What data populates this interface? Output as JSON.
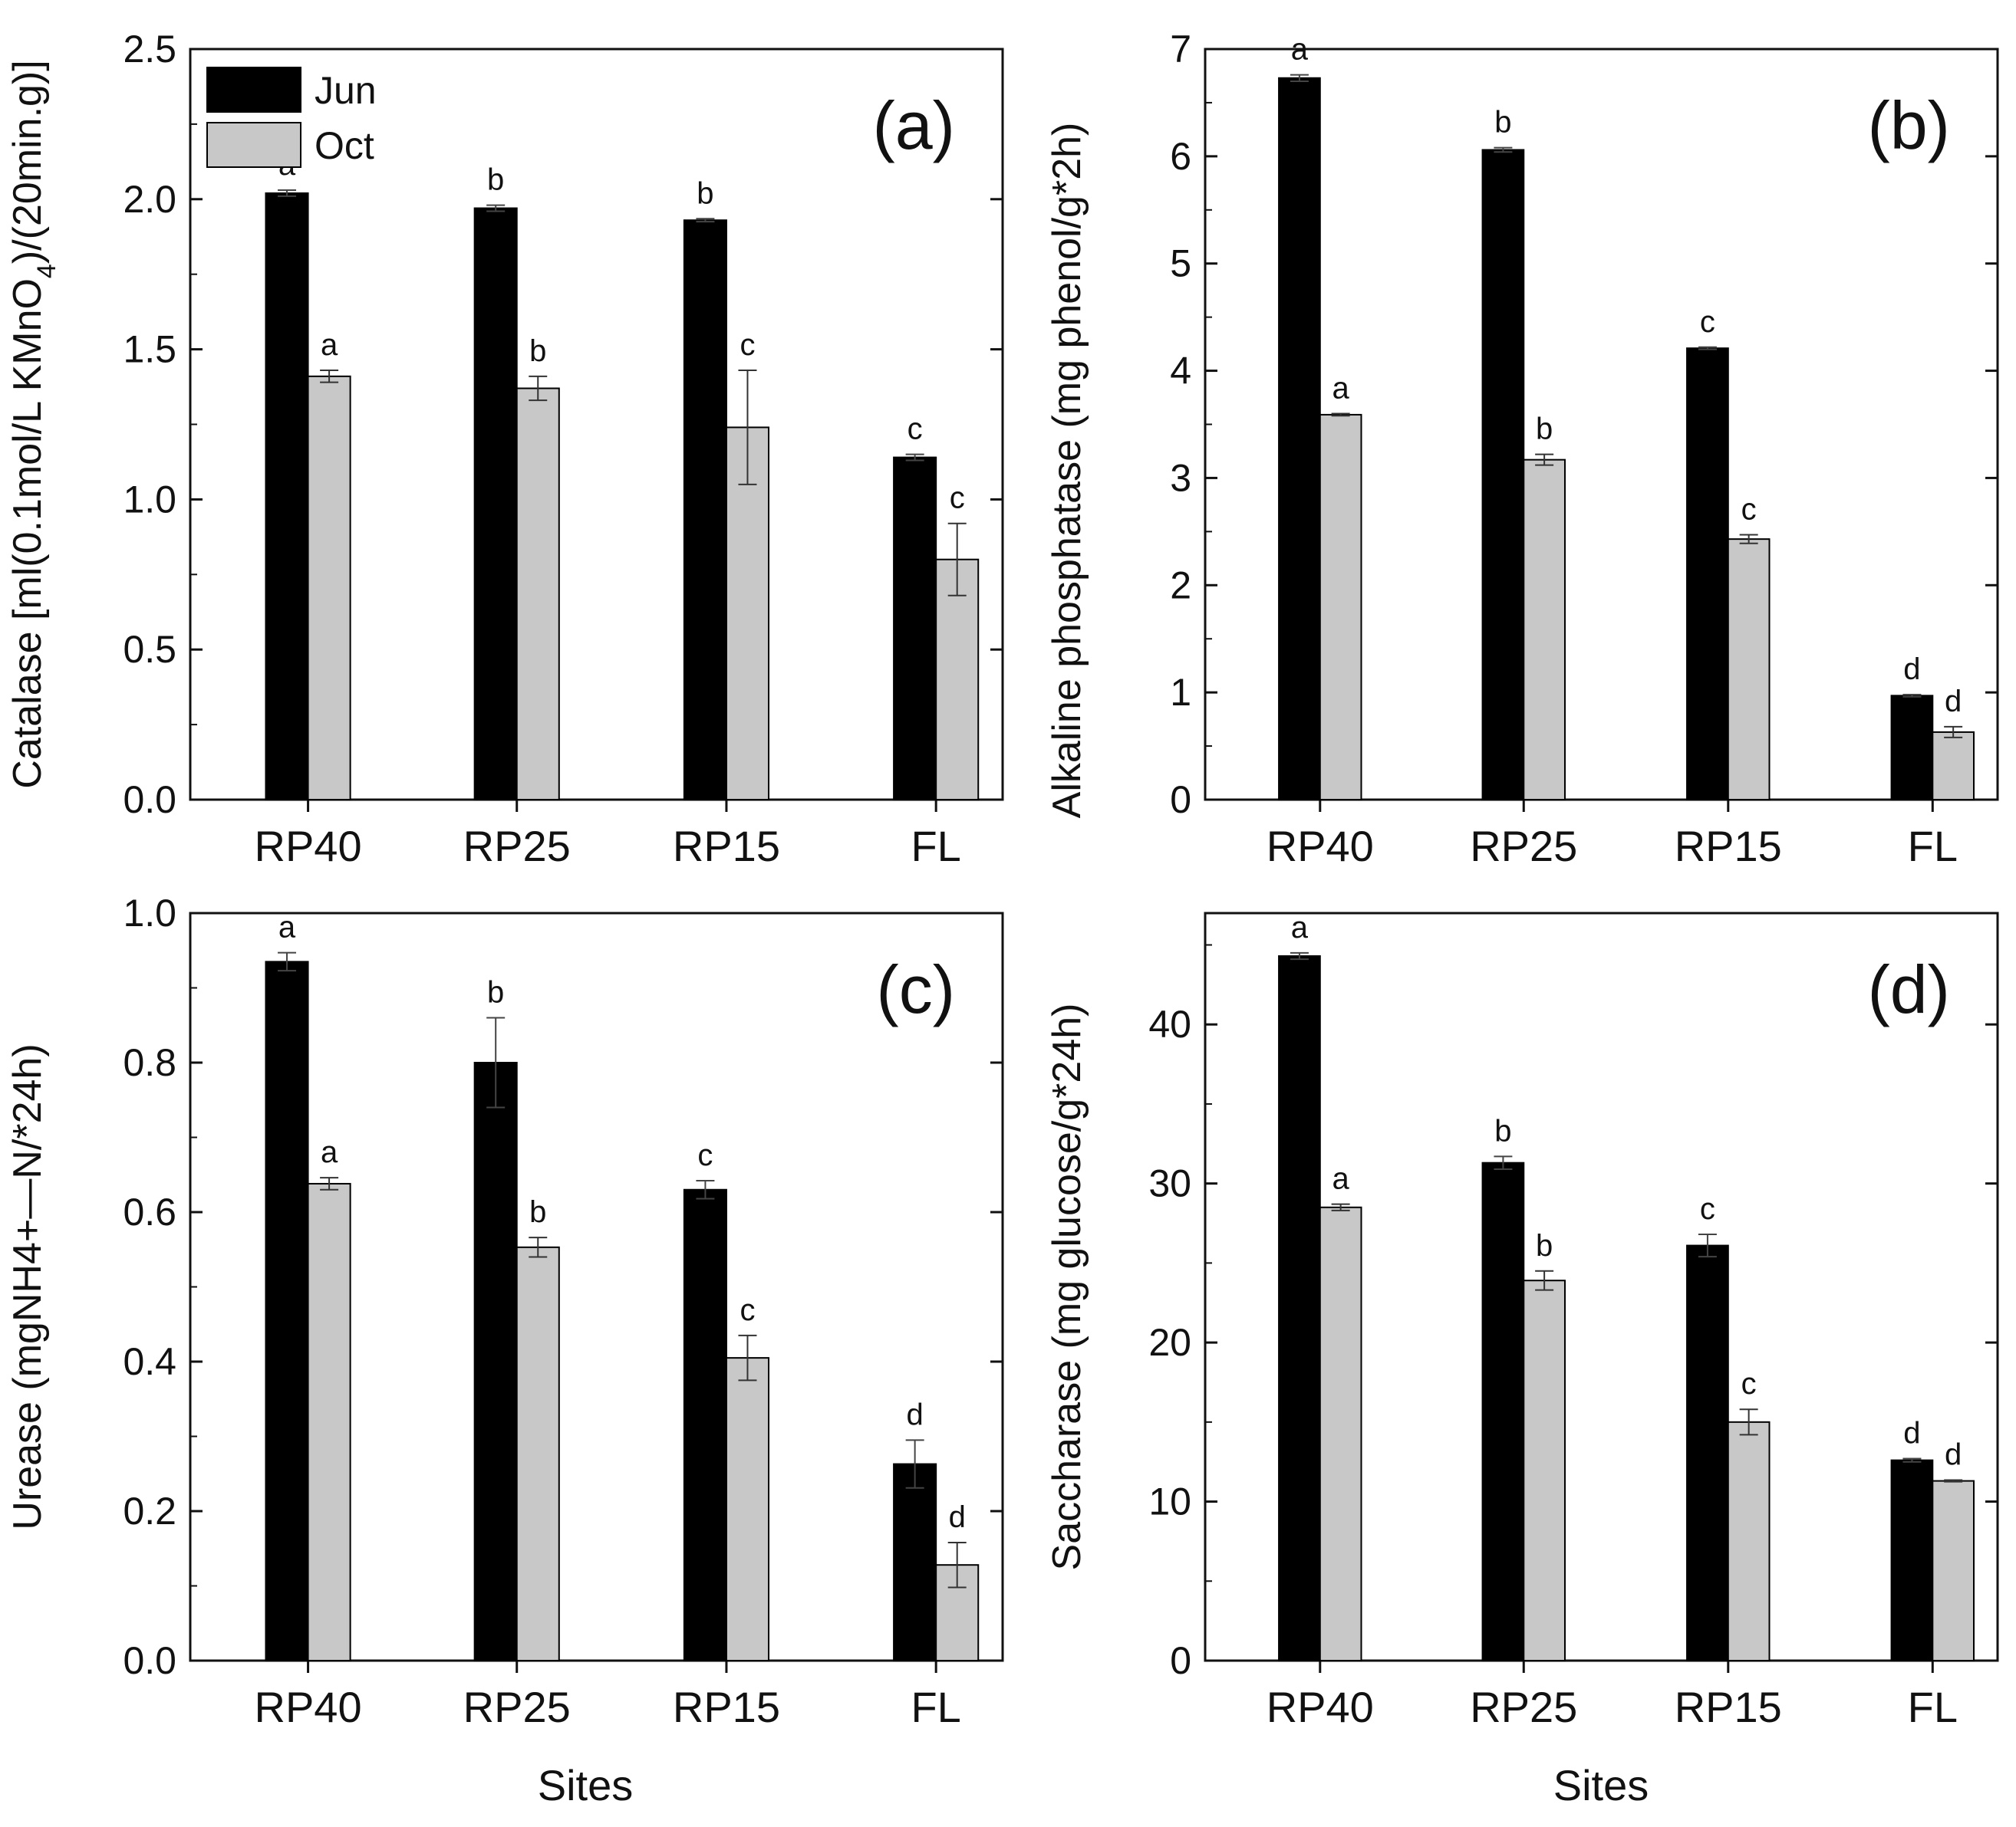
{
  "figure": {
    "xlabel": "Sites"
  },
  "colors": {
    "jun": "#000000",
    "oct": "#c8c8c8",
    "axis": "#111111"
  },
  "legend": {
    "placement": "top-left",
    "items": [
      {
        "label": "Jun"
      },
      {
        "label": "Oct"
      }
    ]
  },
  "chart_data": [
    {
      "type": "bar",
      "panel": "(a)",
      "ylabel_parts": [
        "Catalase [ml(0.1mol/L KMnO",
        "4",
        ")/(20min.g)]"
      ],
      "ylim": [
        0,
        2.5
      ],
      "yticks": [
        "0.0",
        "0.5",
        "1.0",
        "1.5",
        "2.0",
        "2.5"
      ],
      "categories": [
        "RP40",
        "RP25",
        "RP15",
        "FL"
      ],
      "series": [
        {
          "name": "Jun",
          "values": [
            2.02,
            1.97,
            1.93,
            1.14
          ],
          "errors": [
            0.01,
            0.01,
            0.005,
            0.01
          ],
          "letters": [
            "a",
            "b",
            "b",
            "c"
          ]
        },
        {
          "name": "Oct",
          "values": [
            1.41,
            1.37,
            1.24,
            0.8
          ],
          "errors": [
            0.02,
            0.04,
            0.19,
            0.12
          ],
          "letters": [
            "a",
            "b",
            "c",
            "c"
          ]
        }
      ]
    },
    {
      "type": "bar",
      "panel": "(b)",
      "ylabel_parts": [
        "Alkaline phosphatase (mg phenol/g*2h)"
      ],
      "ylim": [
        0,
        7
      ],
      "yticks": [
        "0",
        "1",
        "2",
        "3",
        "4",
        "5",
        "6",
        "7"
      ],
      "categories": [
        "RP40",
        "RP25",
        "RP15",
        "FL"
      ],
      "series": [
        {
          "name": "Jun",
          "values": [
            6.73,
            6.06,
            4.21,
            0.97
          ],
          "errors": [
            0.03,
            0.02,
            0.01,
            0.01
          ],
          "letters": [
            "a",
            "b",
            "c",
            "d"
          ]
        },
        {
          "name": "Oct",
          "values": [
            3.59,
            3.17,
            2.43,
            0.63
          ],
          "errors": [
            0.01,
            0.05,
            0.04,
            0.05
          ],
          "letters": [
            "a",
            "b",
            "c",
            "d"
          ]
        }
      ]
    },
    {
      "type": "bar",
      "panel": "(c)",
      "ylabel_parts": [
        "Urease (mgNH4+—N/*24h)"
      ],
      "ylim": [
        0,
        1.0
      ],
      "yticks": [
        "0.0",
        "0.2",
        "0.4",
        "0.6",
        "0.8",
        "1.0"
      ],
      "categories": [
        "RP40",
        "RP25",
        "RP15",
        "FL"
      ],
      "series": [
        {
          "name": "Jun",
          "values": [
            0.935,
            0.8,
            0.63,
            0.263
          ],
          "errors": [
            0.012,
            0.06,
            0.012,
            0.032
          ],
          "letters": [
            "a",
            "b",
            "c",
            "d"
          ]
        },
        {
          "name": "Oct",
          "values": [
            0.638,
            0.553,
            0.405,
            0.128
          ],
          "errors": [
            0.008,
            0.013,
            0.03,
            0.03
          ],
          "letters": [
            "a",
            "b",
            "c",
            "d"
          ]
        }
      ]
    },
    {
      "type": "bar",
      "panel": "(d)",
      "ylabel_parts": [
        "Saccharase (mg glucose/g*24h)"
      ],
      "ylim": [
        0,
        47
      ],
      "yticks": [
        "0",
        "10",
        "20",
        "30",
        "40"
      ],
      "ytick_values": [
        0,
        10,
        20,
        30,
        40
      ],
      "categories": [
        "RP40",
        "RP25",
        "RP15",
        "FL"
      ],
      "series": [
        {
          "name": "Jun",
          "values": [
            44.3,
            31.3,
            26.1,
            12.6
          ],
          "errors": [
            0.2,
            0.4,
            0.7,
            0.1
          ],
          "letters": [
            "a",
            "b",
            "c",
            "d"
          ]
        },
        {
          "name": "Oct",
          "values": [
            28.5,
            23.9,
            15.0,
            11.3
          ],
          "errors": [
            0.2,
            0.6,
            0.8,
            0.05
          ],
          "letters": [
            "a",
            "b",
            "c",
            "d"
          ]
        }
      ]
    }
  ]
}
